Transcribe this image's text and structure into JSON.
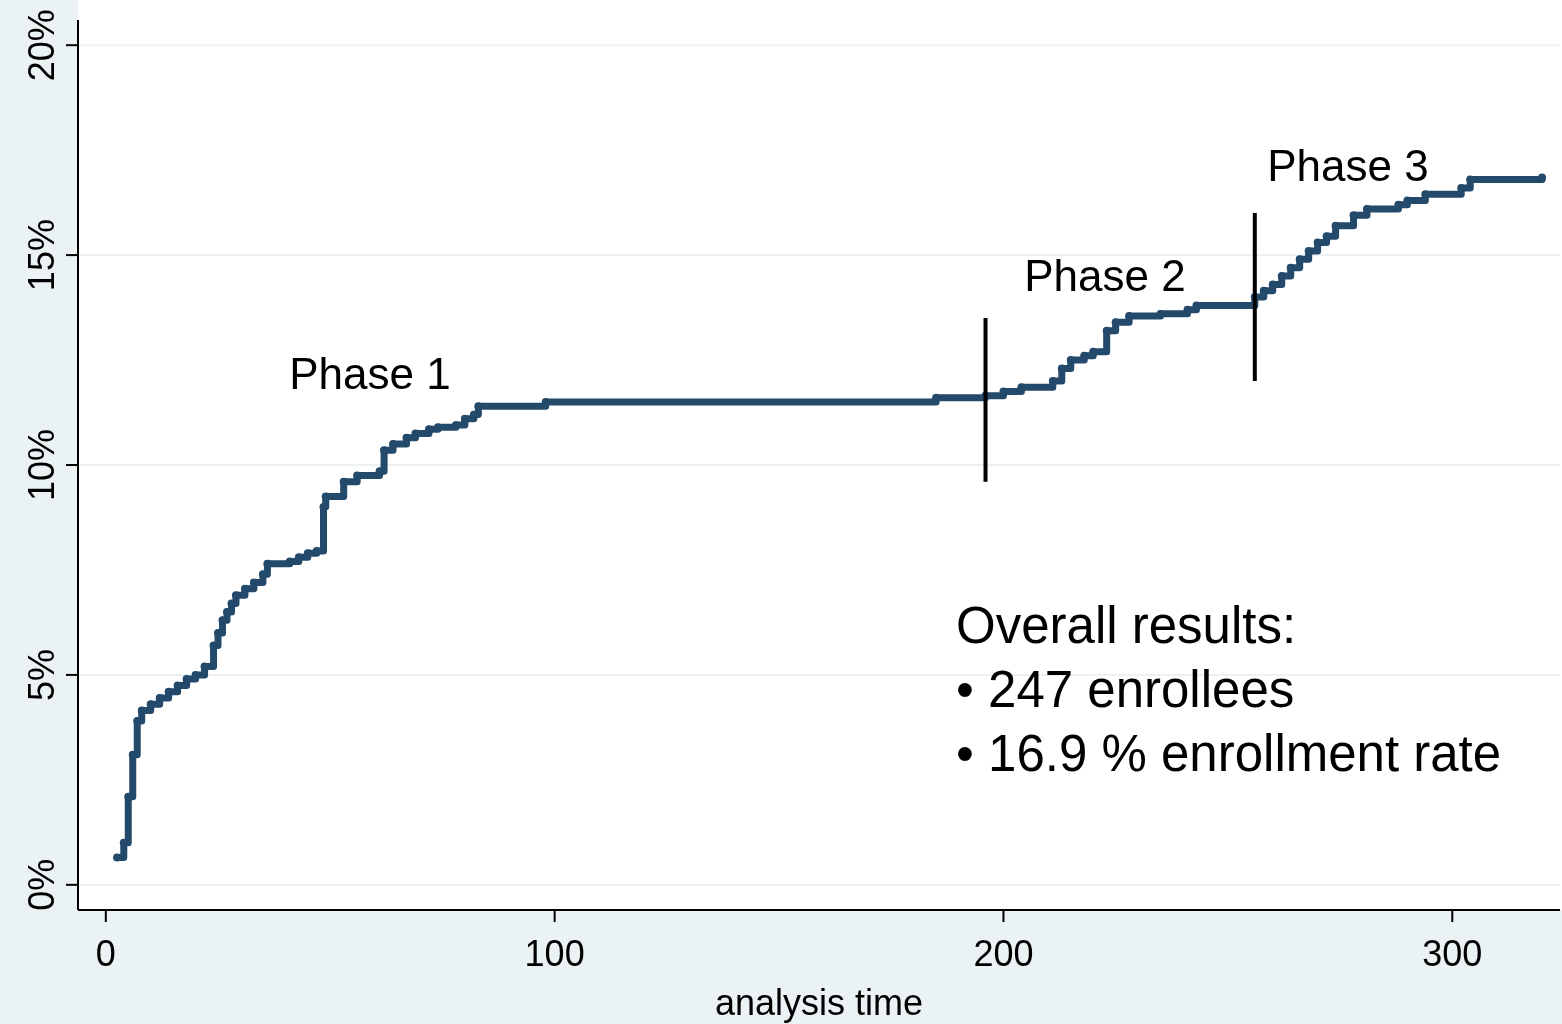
{
  "chart_data": {
    "type": "step",
    "xlabel": "analysis time",
    "xlim": [
      -6.2,
      324
    ],
    "ylim": [
      -0.6,
      20.6
    ],
    "xticks": [
      0,
      100,
      200,
      300
    ],
    "yticks": [
      {
        "value": 0,
        "label": "0%"
      },
      {
        "value": 5,
        "label": "5%"
      },
      {
        "value": 10,
        "label": "10%"
      },
      {
        "value": 15,
        "label": "15%"
      },
      {
        "value": 20,
        "label": "20%"
      }
    ],
    "grid": "y",
    "series": [
      {
        "color": "#23496b",
        "marker": "circle",
        "x": [
          2.5,
          4,
          5,
          6,
          7,
          8,
          10,
          12,
          14,
          16,
          18,
          20,
          22,
          24,
          25,
          26,
          27,
          28,
          29,
          31,
          33,
          35,
          36,
          41,
          43,
          45,
          47,
          48.5,
          49,
          53,
          56,
          61,
          62,
          64,
          67,
          69,
          72,
          74,
          78,
          80,
          82,
          83,
          98,
          185,
          196,
          200,
          204,
          211,
          213,
          215,
          218,
          220,
          223,
          225,
          228,
          235,
          241,
          243,
          256,
          258,
          260,
          262,
          264,
          266,
          268,
          270,
          272,
          274,
          278,
          281,
          288,
          290,
          294,
          302,
          304,
          320
        ],
        "values": [
          0.65,
          1.0,
          2.1,
          3.1,
          3.9,
          4.15,
          4.3,
          4.45,
          4.6,
          4.75,
          4.9,
          5.0,
          5.2,
          5.7,
          6.0,
          6.3,
          6.5,
          6.7,
          6.9,
          7.05,
          7.2,
          7.4,
          7.65,
          7.7,
          7.8,
          7.9,
          7.95,
          9.0,
          9.25,
          9.6,
          9.75,
          9.85,
          10.35,
          10.5,
          10.65,
          10.75,
          10.85,
          10.9,
          10.95,
          11.1,
          11.2,
          11.4,
          11.5,
          11.6,
          11.65,
          11.75,
          11.85,
          12.0,
          12.3,
          12.5,
          12.6,
          12.7,
          13.2,
          13.4,
          13.55,
          13.6,
          13.7,
          13.8,
          14.0,
          14.15,
          14.3,
          14.5,
          14.7,
          14.9,
          15.1,
          15.3,
          15.45,
          15.7,
          15.95,
          16.1,
          16.2,
          16.3,
          16.45,
          16.6,
          16.8,
          16.85
        ]
      },
      {
        "type": "line",
        "color": "#000000",
        "marker": "none",
        "x": [
          196,
          196
        ],
        "values": [
          9.6,
          13.5
        ]
      },
      {
        "type": "line",
        "color": "#000000",
        "marker": "none",
        "x": [
          256,
          256
        ],
        "values": [
          12.0,
          16.0
        ]
      }
    ],
    "annotations": [
      "Phase 1",
      "Phase 2",
      "Phase 3",
      "Overall results:",
      "• 247 enrollees",
      "• 16.9 % enrollment rate"
    ]
  }
}
